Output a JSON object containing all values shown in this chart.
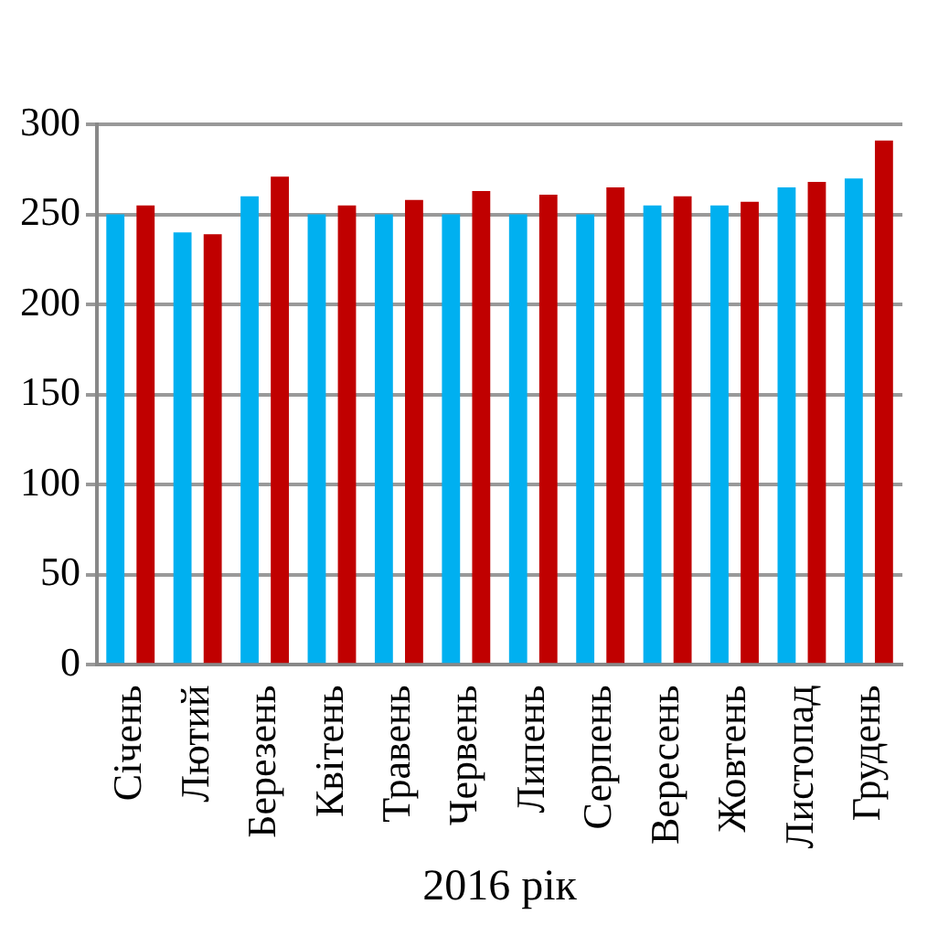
{
  "chart_data": {
    "type": "bar",
    "xlabel": "2016 рік",
    "categories": [
      "Січень",
      "Лютий",
      "Березень",
      "Квітень",
      "Травень",
      "Червень",
      "Липень",
      "Серпень",
      "Вересень",
      "Жовтень",
      "Листопад",
      "Грудень"
    ],
    "series": [
      {
        "color": "#00b0f0",
        "values": [
          250,
          240,
          260,
          250,
          250,
          250,
          250,
          250,
          255,
          255,
          265,
          270
        ]
      },
      {
        "color": "#c00000",
        "values": [
          255,
          239,
          271,
          255,
          258,
          263,
          261,
          265,
          260,
          257,
          268,
          291
        ]
      }
    ],
    "ylim": [
      0,
      300
    ],
    "yticks": [
      0,
      50,
      100,
      150,
      200,
      250,
      300
    ],
    "grid": "y",
    "legend": false
  }
}
